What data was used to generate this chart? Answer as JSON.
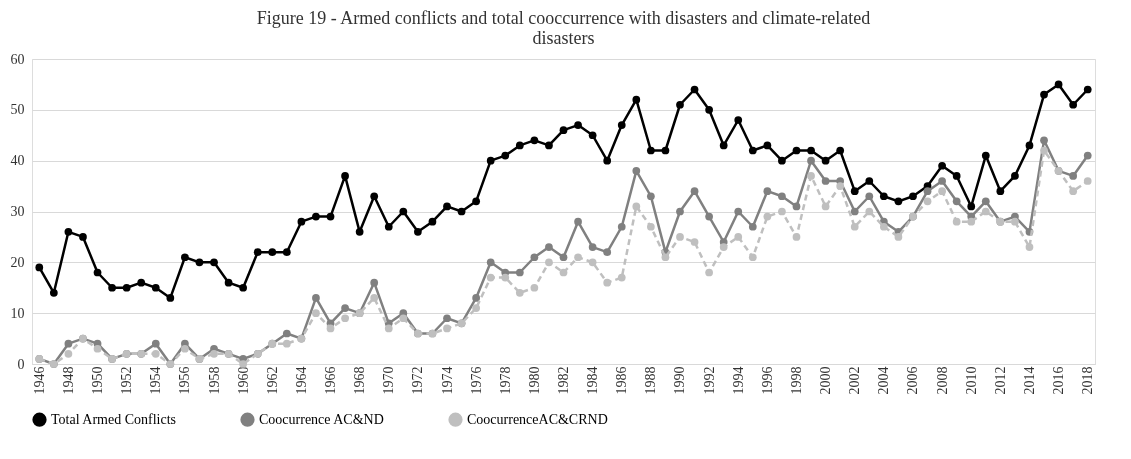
{
  "chart_data": {
    "type": "line",
    "title": [
      "Figure 19 - Armed conflicts and total cooccurrence with disasters and climate-related",
      "disasters"
    ],
    "categories": [
      "1946",
      null,
      "1948",
      null,
      "1950",
      null,
      "1952",
      null,
      "1954",
      null,
      "1956",
      null,
      "1958",
      null,
      "1960",
      null,
      "1962",
      null,
      "1964",
      null,
      "1966",
      null,
      "1968",
      null,
      "1970",
      null,
      "1972",
      null,
      "1974",
      null,
      "1976",
      null,
      "1978",
      null,
      "1980",
      null,
      "1982",
      null,
      "1984",
      null,
      "1986",
      null,
      "1988",
      null,
      "1990",
      null,
      "1992",
      null,
      "1994",
      null,
      "1996",
      null,
      "1998",
      null,
      "2000",
      null,
      "2002",
      null,
      "2004",
      null,
      "2006",
      null,
      "2008",
      null,
      "2010",
      null,
      "2012",
      null,
      "2014",
      null,
      "2016",
      null,
      "2018"
    ],
    "series": [
      {
        "name": "Total Armed Conflicts",
        "color": "#000000",
        "line_style": "solid",
        "values": [
          19,
          14,
          26,
          25,
          18,
          15,
          15,
          16,
          15,
          13,
          21,
          20,
          20,
          16,
          15,
          22,
          22,
          22,
          28,
          29,
          29,
          37,
          26,
          33,
          27,
          30,
          26,
          28,
          31,
          30,
          32,
          40,
          41,
          43,
          44,
          43,
          46,
          47,
          45,
          40,
          47,
          52,
          42,
          42,
          51,
          54,
          50,
          43,
          48,
          42,
          43,
          40,
          42,
          42,
          40,
          42,
          34,
          36,
          33,
          32,
          33,
          35,
          39,
          37,
          31,
          41,
          34,
          37,
          43,
          53,
          55,
          51,
          54
        ]
      },
      {
        "name": "Coocurrence AC&ND",
        "color": "#808080",
        "line_style": "solid",
        "values": [
          1,
          0,
          4,
          5,
          4,
          1,
          2,
          2,
          4,
          0,
          4,
          1,
          3,
          2,
          1,
          2,
          4,
          6,
          5,
          13,
          8,
          11,
          10,
          16,
          8,
          10,
          6,
          6,
          9,
          8,
          13,
          20,
          18,
          18,
          21,
          23,
          21,
          28,
          23,
          22,
          27,
          38,
          33,
          22,
          30,
          34,
          29,
          24,
          30,
          27,
          34,
          33,
          31,
          40,
          36,
          36,
          30,
          33,
          28,
          26,
          29,
          34,
          36,
          32,
          29,
          32,
          28,
          29,
          26,
          44,
          38,
          37,
          41
        ]
      },
      {
        "name": "CoocurrenceAC&CRND",
        "color": "#bfbfbf",
        "line_style": "dashed",
        "values": [
          1,
          0,
          2,
          5,
          3,
          1,
          2,
          2,
          2,
          0,
          3,
          1,
          2,
          2,
          0,
          2,
          4,
          4,
          5,
          10,
          7,
          9,
          10,
          13,
          7,
          9,
          6,
          6,
          7,
          8,
          11,
          17,
          17,
          14,
          15,
          20,
          18,
          21,
          20,
          16,
          17,
          31,
          27,
          21,
          25,
          24,
          18,
          23,
          25,
          21,
          29,
          30,
          25,
          37,
          31,
          35,
          27,
          30,
          27,
          25,
          29,
          32,
          34,
          28,
          28,
          30,
          28,
          28,
          23,
          42,
          38,
          34,
          36
        ]
      }
    ],
    "ylim": [
      0,
      60
    ],
    "yticks": [
      0,
      10,
      20,
      30,
      40,
      50,
      60
    ],
    "grid": "y",
    "legend": "bottom",
    "marker": "circle"
  }
}
